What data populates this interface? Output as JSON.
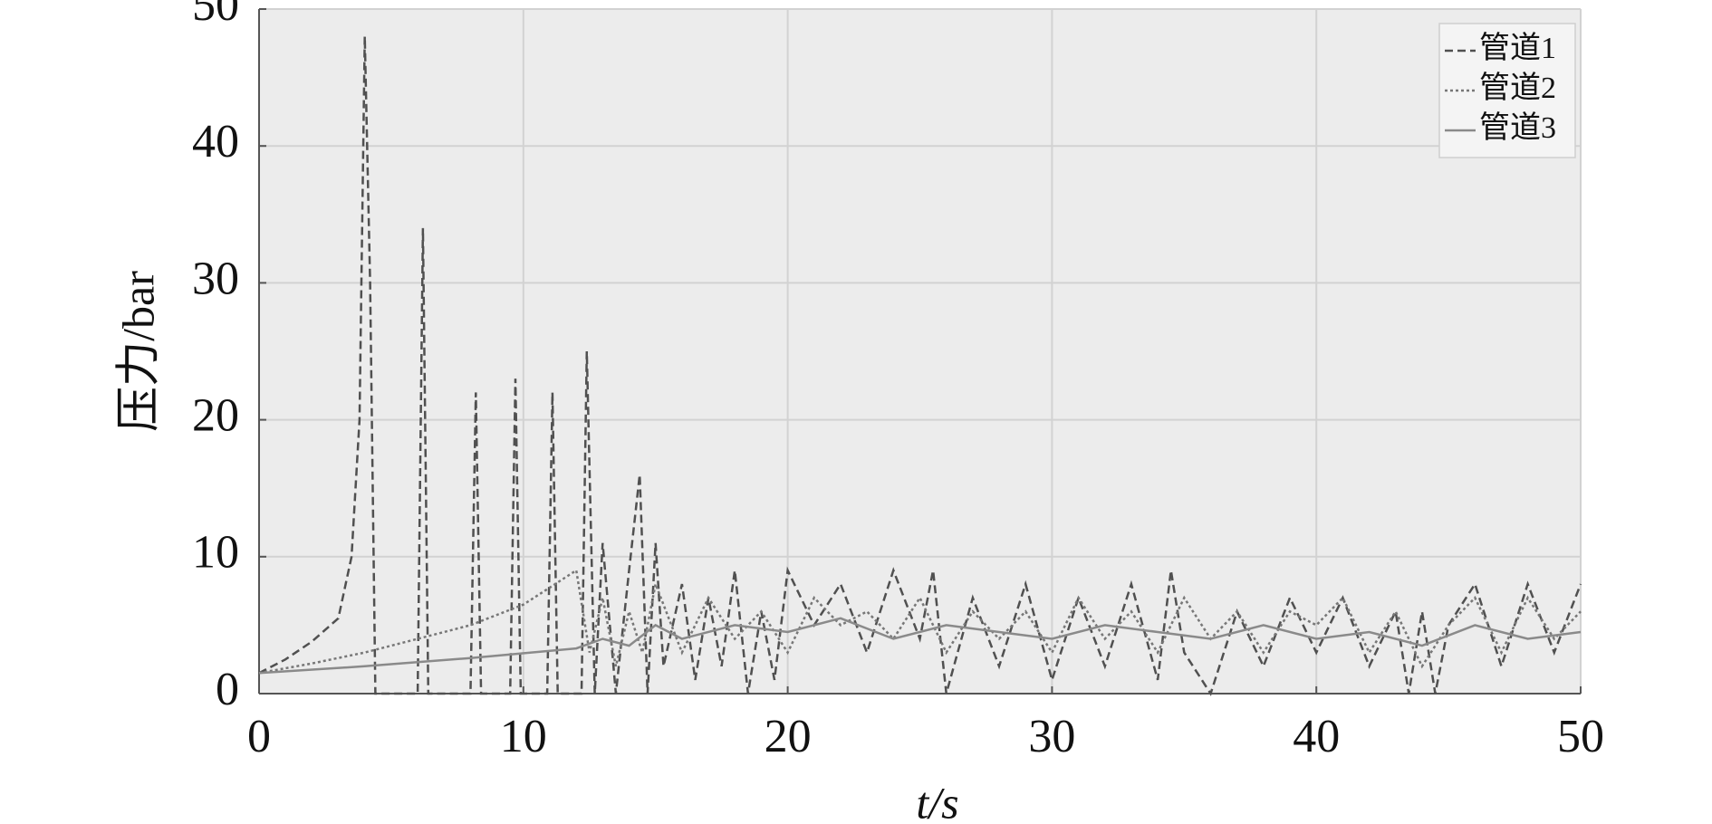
{
  "chart_data": {
    "type": "line",
    "xlabel": "t/s",
    "ylabel": "压力/bar",
    "xlim": [
      0,
      50
    ],
    "ylim": [
      0,
      50
    ],
    "xticks": [
      0,
      10,
      20,
      30,
      40,
      50
    ],
    "yticks": [
      0,
      10,
      20,
      30,
      40,
      50
    ],
    "grid": true,
    "legend": "upper right",
    "series": [
      {
        "name": "管道1",
        "color": "#505050",
        "linestyle": "dashed",
        "x": [
          0,
          1,
          2,
          3,
          3.5,
          3.8,
          4.0,
          4.2,
          4.4,
          4.6,
          6.0,
          6.2,
          6.4,
          8.0,
          8.2,
          8.4,
          9.5,
          9.7,
          9.9,
          10.9,
          11.1,
          11.3,
          12.2,
          12.4,
          12.7,
          13,
          13.5,
          14,
          14.4,
          14.7,
          15,
          15.3,
          16,
          16.5,
          17,
          17.5,
          18,
          18.5,
          19,
          19.5,
          20,
          21,
          22,
          23,
          24,
          25,
          25.5,
          26,
          27,
          28,
          29,
          30,
          31,
          32,
          33,
          34,
          34.5,
          35,
          36,
          37,
          38,
          39,
          40,
          41,
          42,
          43,
          43.5,
          44,
          44.5,
          45,
          46,
          47,
          48,
          49,
          50
        ],
        "values": [
          1.5,
          2.5,
          3.8,
          5.5,
          10,
          20,
          48,
          30,
          0,
          0,
          0,
          34,
          0,
          0,
          22,
          0,
          0,
          23,
          0,
          0,
          22,
          0,
          0,
          25,
          0,
          11,
          0,
          9,
          16,
          0,
          11,
          2,
          8,
          1,
          7,
          2,
          9,
          0,
          6,
          1,
          9,
          5,
          8,
          3,
          9,
          4,
          9,
          0,
          7,
          2,
          8,
          1,
          7,
          2,
          8,
          1,
          9,
          3,
          0,
          6,
          2,
          7,
          3,
          7,
          2,
          6,
          0,
          6,
          0,
          5,
          8,
          2,
          8,
          3,
          8
        ]
      },
      {
        "name": "管道2",
        "color": "#777777",
        "linestyle": "dotted",
        "x": [
          0,
          2,
          4,
          6,
          8,
          10,
          12,
          12.5,
          13,
          13.5,
          14,
          14.5,
          15,
          16,
          17,
          18,
          19,
          20,
          21,
          22,
          23,
          24,
          25,
          26,
          27,
          28,
          29,
          30,
          31,
          32,
          33,
          34,
          35,
          36,
          37,
          38,
          39,
          40,
          41,
          42,
          43,
          44,
          45,
          46,
          47,
          48,
          49,
          50
        ],
        "values": [
          1.5,
          2.2,
          3,
          4,
          5,
          6.5,
          9,
          3,
          7,
          2,
          6,
          3,
          8,
          3,
          7,
          4,
          6,
          3,
          7,
          5,
          6,
          4,
          7,
          3,
          6,
          4,
          6,
          3,
          7,
          4,
          6,
          3,
          7,
          4,
          6,
          3,
          6,
          5,
          7,
          3,
          6,
          2,
          5,
          7,
          3,
          7,
          4,
          6
        ]
      },
      {
        "name": "管道3",
        "color": "#8a8a8a",
        "linestyle": "solid",
        "x": [
          0,
          4,
          8,
          12,
          13,
          14,
          15,
          16,
          18,
          20,
          22,
          24,
          26,
          28,
          30,
          32,
          34,
          36,
          38,
          40,
          42,
          44,
          46,
          48,
          50
        ],
        "values": [
          1.5,
          2,
          2.6,
          3.3,
          4,
          3.5,
          5,
          4,
          5,
          4.5,
          5.5,
          4,
          5,
          4.5,
          4,
          5,
          4.5,
          4,
          5,
          4,
          4.5,
          3.5,
          5,
          4,
          4.5
        ]
      }
    ]
  }
}
